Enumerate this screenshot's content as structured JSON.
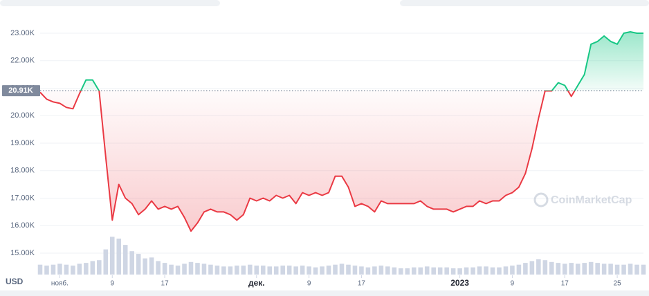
{
  "chart_data": {
    "type": "line",
    "currency": "USD",
    "watermark": "CoinMarketCap",
    "baseline": {
      "value": 20.91,
      "label": "20.91K"
    },
    "up_color": "#16c784",
    "down_color": "#ea3943",
    "volume_color": "#cfd6e4",
    "grid": true,
    "xlim": [
      0,
      92
    ],
    "xticks": [
      {
        "value": 3,
        "label": "нояб."
      },
      {
        "value": 11,
        "label": "9"
      },
      {
        "value": 19,
        "label": "17"
      },
      {
        "value": 33,
        "label": "дек."
      },
      {
        "value": 41,
        "label": "9"
      },
      {
        "value": 49,
        "label": "17"
      },
      {
        "value": 64,
        "label": "2023"
      },
      {
        "value": 72,
        "label": "9"
      },
      {
        "value": 80,
        "label": "17"
      },
      {
        "value": 88,
        "label": "25"
      }
    ],
    "ylim": [
      14.5,
      23.3
    ],
    "yticks": [
      {
        "value": 15,
        "label": "15.00K"
      },
      {
        "value": 16,
        "label": "16.00K"
      },
      {
        "value": 17,
        "label": "17.00K"
      },
      {
        "value": 18,
        "label": "18.00K"
      },
      {
        "value": 19,
        "label": "19.00K"
      },
      {
        "value": 20,
        "label": "20.00K"
      },
      {
        "value": 21,
        "label": "21.00K"
      },
      {
        "value": 22,
        "label": "22.00K"
      },
      {
        "value": 23,
        "label": "23.00K"
      }
    ],
    "values": [
      20.85,
      20.6,
      20.5,
      20.45,
      20.3,
      20.25,
      20.8,
      21.3,
      21.3,
      20.9,
      18.5,
      16.2,
      17.5,
      17.0,
      16.8,
      16.4,
      16.6,
      16.9,
      16.6,
      16.7,
      16.6,
      16.7,
      16.3,
      15.8,
      16.1,
      16.5,
      16.6,
      16.5,
      16.5,
      16.4,
      16.2,
      16.4,
      17.0,
      16.9,
      17.0,
      16.9,
      17.1,
      17.0,
      17.1,
      16.8,
      17.2,
      17.1,
      17.2,
      17.1,
      17.2,
      17.8,
      17.8,
      17.4,
      16.7,
      16.8,
      16.7,
      16.5,
      16.9,
      16.8,
      16.8,
      16.8,
      16.8,
      16.8,
      16.9,
      16.7,
      16.6,
      16.6,
      16.6,
      16.5,
      16.6,
      16.7,
      16.7,
      16.9,
      16.8,
      16.9,
      16.9,
      17.1,
      17.2,
      17.4,
      17.9,
      18.8,
      19.9,
      20.9,
      20.9,
      21.2,
      21.1,
      20.7,
      21.1,
      21.5,
      22.6,
      22.7,
      22.9,
      22.7,
      22.6,
      23.0,
      23.05,
      23.0,
      23.0
    ],
    "volume": [
      1.1,
      1.0,
      1.1,
      1.2,
      1.1,
      1.0,
      1.2,
      1.3,
      1.5,
      1.6,
      2.8,
      4.2,
      4.0,
      3.3,
      2.6,
      2.3,
      1.8,
      1.9,
      1.5,
      1.3,
      1.1,
      1.0,
      1.2,
      1.4,
      1.3,
      1.2,
      1.1,
      1.0,
      0.9,
      0.9,
      1.0,
      1.0,
      1.1,
      1.0,
      1.0,
      0.9,
      0.9,
      1.0,
      1.0,
      0.9,
      1.0,
      0.9,
      0.8,
      0.9,
      1.0,
      1.1,
      1.2,
      1.1,
      1.0,
      0.9,
      0.8,
      0.9,
      1.0,
      0.9,
      0.8,
      0.7,
      0.7,
      0.8,
      0.8,
      0.9,
      0.8,
      0.8,
      0.8,
      0.7,
      0.7,
      0.8,
      0.8,
      0.9,
      0.9,
      0.8,
      0.8,
      0.9,
      1.0,
      1.1,
      1.3,
      1.5,
      1.7,
      1.6,
      1.4,
      1.3,
      1.2,
      1.3,
      1.2,
      1.3,
      1.4,
      1.3,
      1.2,
      1.2,
      1.1,
      1.1,
      1.2,
      1.1,
      1.1
    ]
  }
}
